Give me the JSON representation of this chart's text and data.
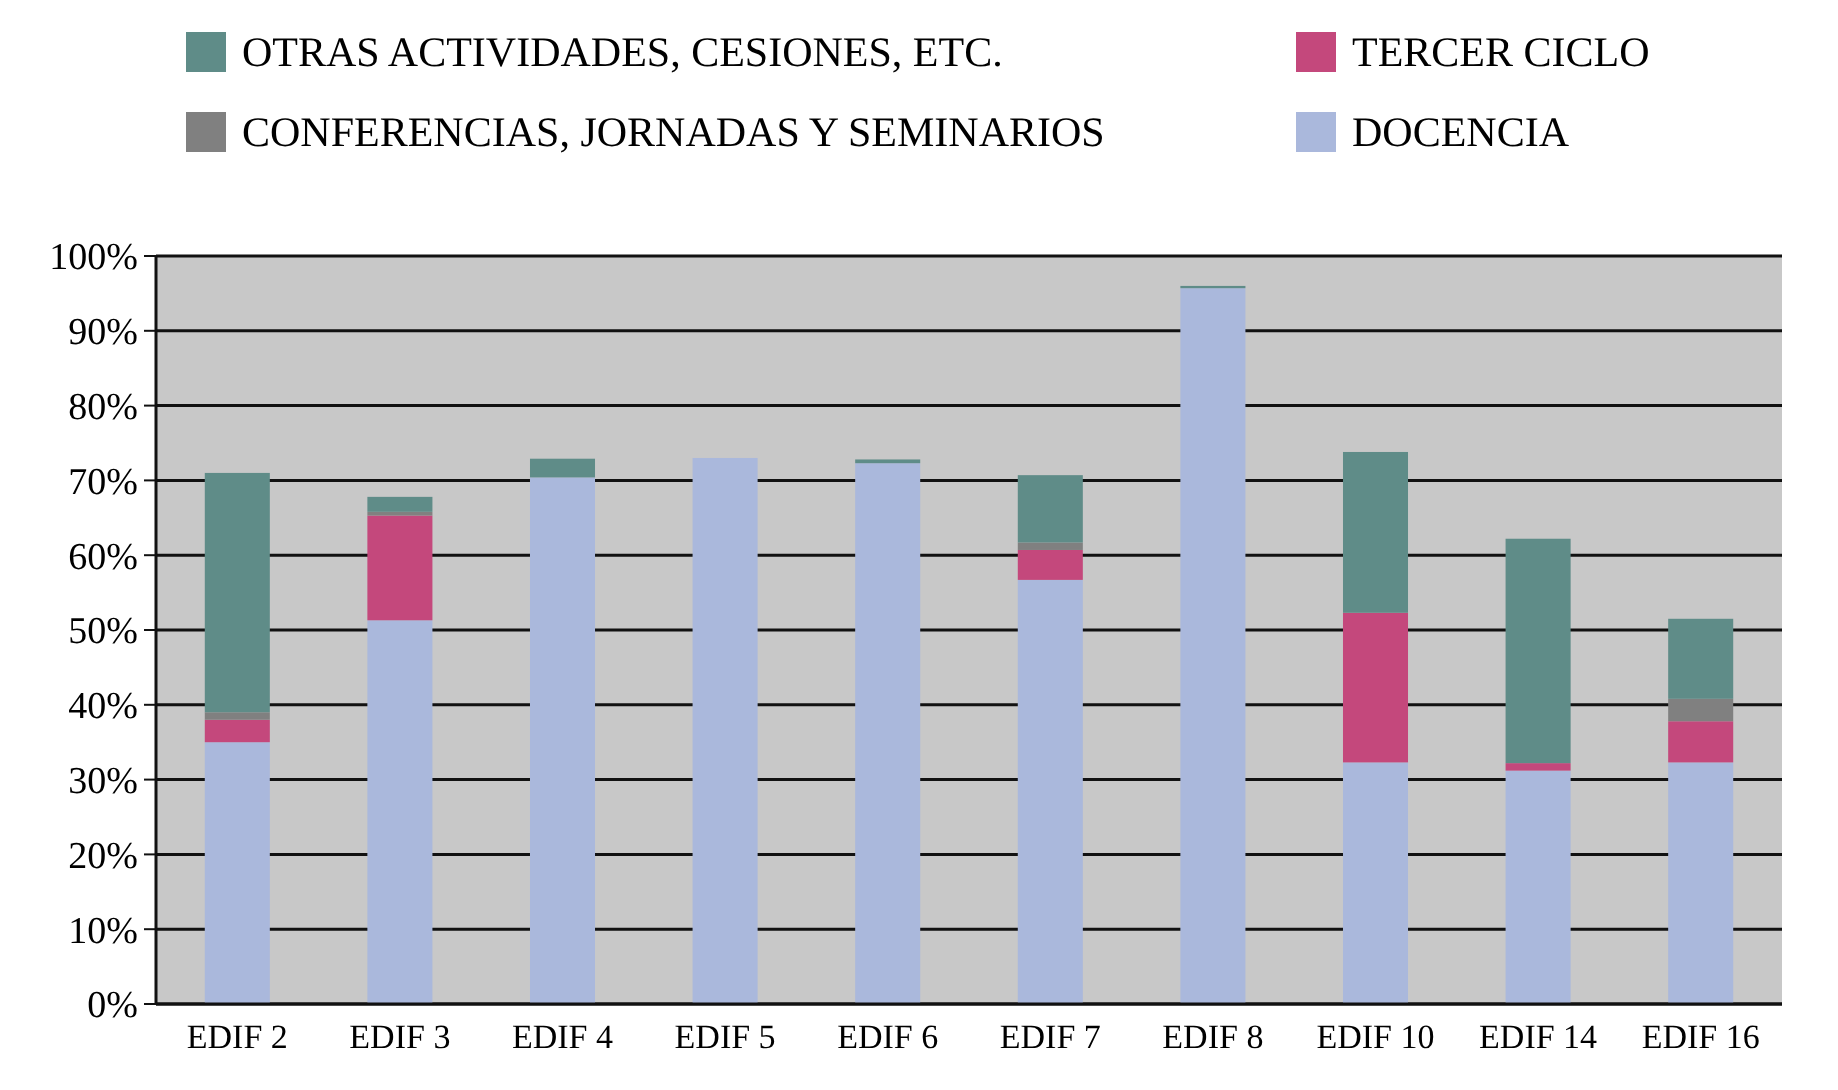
{
  "chart_data": {
    "type": "bar",
    "stacked": true,
    "legend": "top",
    "grid": "y",
    "categories": [
      "EDIF 2",
      "EDIF 3",
      "EDIF 4",
      "EDIF 5",
      "EDIF 6",
      "EDIF 7",
      "EDIF 8",
      "EDIF 10",
      "EDIF 14",
      "EDIF 16"
    ],
    "series": [
      {
        "name": "DOCENCIA",
        "color": "#aab8dc",
        "values": [
          35,
          51.3,
          70.4,
          73,
          72.3,
          56.7,
          95.7,
          32.3,
          31.2,
          32.3
        ]
      },
      {
        "name": "TERCER CICLO",
        "color": "#c4487c",
        "values": [
          3,
          14,
          0,
          0,
          0,
          4,
          0,
          20,
          1,
          5.5
        ]
      },
      {
        "name": "CONFERENCIAS, JORNADAS Y SEMINARIOS",
        "color": "#808080",
        "values": [
          1,
          0.5,
          null,
          0,
          0,
          1,
          0,
          null,
          0,
          3
        ]
      },
      {
        "name": "OTRAS ACTIVIDADES, CESIONES, ETC.",
        "color": "#5f8c88",
        "values": [
          32,
          2,
          2.5,
          0,
          0.5,
          9,
          0.3,
          21.5,
          30,
          10.7
        ]
      }
    ],
    "ylim": [
      0,
      100
    ],
    "yticks": [
      {
        "value": 0,
        "label": "0%"
      },
      {
        "value": 10,
        "label": "10%"
      },
      {
        "value": 20,
        "label": "20%"
      },
      {
        "value": 30,
        "label": "30%"
      },
      {
        "value": 40,
        "label": "40%"
      },
      {
        "value": 50,
        "label": "50%"
      },
      {
        "value": 60,
        "label": "60%"
      },
      {
        "value": 70,
        "label": "70%"
      },
      {
        "value": 80,
        "label": "80%"
      },
      {
        "value": 90,
        "label": "90%"
      },
      {
        "value": 100,
        "label": "100%"
      }
    ]
  }
}
